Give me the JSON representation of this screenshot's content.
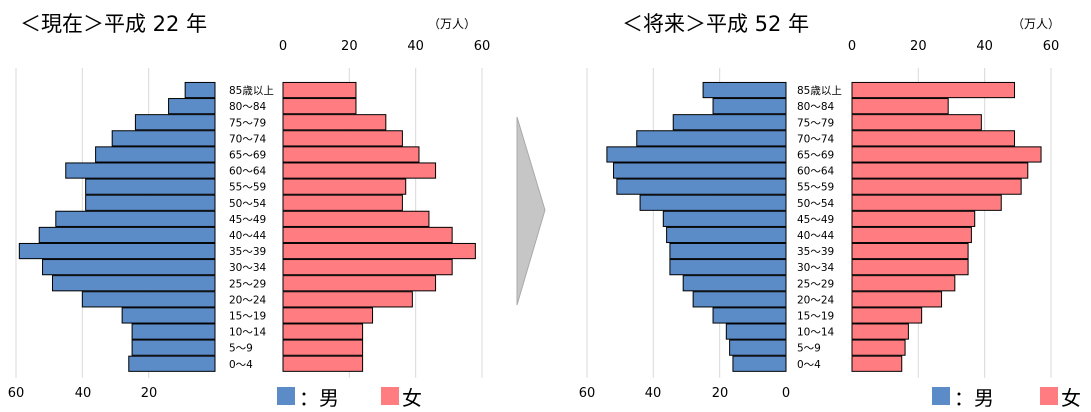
{
  "colors": {
    "male": "#5b8cc8",
    "female": "#ff7c80",
    "arrow": "#c6c6c6"
  },
  "legend": {
    "male_label": "：男",
    "female_label": "女"
  },
  "chart_data": [
    {
      "type": "bar",
      "title": "＜現在＞平成 22 年",
      "unit": "（万人）",
      "categories": [
        "85歳以上",
        "80～84",
        "75～79",
        "70～74",
        "65～69",
        "60～64",
        "55～59",
        "50～54",
        "45～49",
        "40～44",
        "35～39",
        "30～34",
        "25～29",
        "20～24",
        "15～19",
        "10～14",
        "5～9",
        "0～4"
      ],
      "series": [
        {
          "name": "男",
          "values": [
            9,
            14,
            24,
            31,
            36,
            45,
            39,
            39,
            48,
            53,
            59,
            52,
            49,
            40,
            28,
            25,
            25,
            26
          ]
        },
        {
          "name": "女",
          "values": [
            22,
            22,
            31,
            36,
            41,
            46,
            37,
            36,
            44,
            51,
            58,
            51,
            46,
            39,
            27,
            24,
            24,
            24
          ]
        }
      ],
      "xlim": [
        0,
        60
      ],
      "xticks_female": [
        "0",
        "20",
        "40",
        "60"
      ],
      "xticks_male": [
        "60",
        "40",
        "20"
      ]
    },
    {
      "type": "bar",
      "title": "＜将来＞平成 52 年",
      "unit": "（万人）",
      "categories": [
        "85歳以上",
        "80～84",
        "75～79",
        "70～74",
        "65～69",
        "60～64",
        "55～59",
        "50～54",
        "45～49",
        "40～44",
        "35～39",
        "30～34",
        "25～29",
        "20～24",
        "15～19",
        "10～14",
        "5～9",
        "0～4"
      ],
      "series": [
        {
          "name": "男",
          "values": [
            25,
            22,
            34,
            45,
            54,
            52,
            51,
            44,
            37,
            36,
            35,
            35,
            31,
            28,
            22,
            18,
            17,
            16
          ]
        },
        {
          "name": "女",
          "values": [
            49,
            29,
            39,
            49,
            57,
            53,
            51,
            45,
            37,
            36,
            35,
            35,
            31,
            27,
            21,
            17,
            16,
            15
          ]
        }
      ],
      "xlim": [
        0,
        60
      ],
      "xticks_female": [
        "0",
        "20",
        "40",
        "60"
      ],
      "xticks_male": [
        "60",
        "40",
        "20",
        "0"
      ]
    }
  ]
}
